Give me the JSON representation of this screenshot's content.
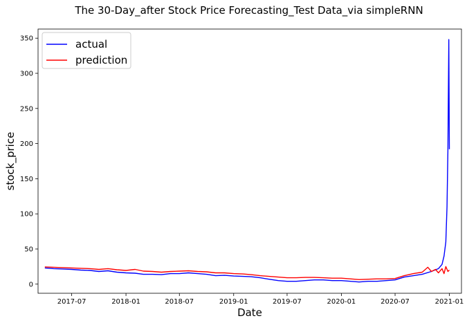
{
  "chart_data": {
    "type": "line",
    "title": "The 30-Day_after Stock Price Forecasting_Test Data_via simpleRNN",
    "xlabel": "Date",
    "ylabel": "stock_price",
    "x_ticks": [
      "2017-07",
      "2018-01",
      "2018-07",
      "2019-01",
      "2019-07",
      "2020-01",
      "2020-07",
      "2021-01"
    ],
    "y_ticks": [
      "0",
      "50",
      "100",
      "150",
      "200",
      "250",
      "300",
      "350"
    ],
    "xlim": [
      "2017-03-09",
      "2021-02-11"
    ],
    "ylim": [
      -13,
      363
    ],
    "grid": false,
    "legend_position": "upper-left",
    "series": [
      {
        "name": "actual",
        "color": "#0000ff",
        "points": [
          [
            "2017-04-01",
            23
          ],
          [
            "2017-05-01",
            22
          ],
          [
            "2017-06-01",
            21.5
          ],
          [
            "2017-07-01",
            21
          ],
          [
            "2017-08-01",
            20
          ],
          [
            "2017-09-01",
            19.5
          ],
          [
            "2017-10-01",
            18
          ],
          [
            "2017-11-01",
            19
          ],
          [
            "2017-12-01",
            17
          ],
          [
            "2018-01-01",
            16
          ],
          [
            "2018-02-01",
            15.5
          ],
          [
            "2018-03-01",
            14
          ],
          [
            "2018-04-01",
            14
          ],
          [
            "2018-05-01",
            13.5
          ],
          [
            "2018-06-01",
            15
          ],
          [
            "2018-07-01",
            15
          ],
          [
            "2018-08-01",
            16
          ],
          [
            "2018-09-01",
            15
          ],
          [
            "2018-10-01",
            14
          ],
          [
            "2018-11-01",
            12
          ],
          [
            "2018-12-01",
            12.5
          ],
          [
            "2019-01-01",
            11.5
          ],
          [
            "2019-02-01",
            11
          ],
          [
            "2019-03-01",
            10.5
          ],
          [
            "2019-04-01",
            9
          ],
          [
            "2019-05-01",
            7
          ],
          [
            "2019-06-01",
            5
          ],
          [
            "2019-07-01",
            4
          ],
          [
            "2019-08-01",
            4
          ],
          [
            "2019-09-01",
            5
          ],
          [
            "2019-10-01",
            6
          ],
          [
            "2019-11-01",
            6
          ],
          [
            "2019-12-01",
            5
          ],
          [
            "2020-01-01",
            5
          ],
          [
            "2020-02-01",
            4
          ],
          [
            "2020-03-01",
            3
          ],
          [
            "2020-04-01",
            4
          ],
          [
            "2020-05-01",
            4
          ],
          [
            "2020-06-01",
            5
          ],
          [
            "2020-07-01",
            6
          ],
          [
            "2020-08-01",
            10
          ],
          [
            "2020-09-01",
            12
          ],
          [
            "2020-10-01",
            14
          ],
          [
            "2020-11-01",
            18
          ],
          [
            "2020-11-25",
            22
          ],
          [
            "2020-12-07",
            28
          ],
          [
            "2020-12-14",
            40
          ],
          [
            "2020-12-20",
            60
          ],
          [
            "2020-12-24",
            110
          ],
          [
            "2020-12-27",
            190
          ],
          [
            "2020-12-30",
            348
          ],
          [
            "2021-01-01",
            192
          ]
        ]
      },
      {
        "name": "prediction",
        "color": "#ff0000",
        "points": [
          [
            "2017-04-01",
            24.5
          ],
          [
            "2017-05-01",
            24
          ],
          [
            "2017-06-01",
            23.5
          ],
          [
            "2017-07-01",
            23
          ],
          [
            "2017-08-01",
            22.5
          ],
          [
            "2017-09-01",
            22
          ],
          [
            "2017-10-01",
            21
          ],
          [
            "2017-11-01",
            22
          ],
          [
            "2017-12-01",
            20.5
          ],
          [
            "2018-01-01",
            19.5
          ],
          [
            "2018-02-01",
            21
          ],
          [
            "2018-03-01",
            18.5
          ],
          [
            "2018-04-01",
            18
          ],
          [
            "2018-05-01",
            17
          ],
          [
            "2018-06-01",
            18
          ],
          [
            "2018-07-01",
            18.5
          ],
          [
            "2018-08-01",
            19
          ],
          [
            "2018-09-01",
            18
          ],
          [
            "2018-10-01",
            17.5
          ],
          [
            "2018-11-01",
            16
          ],
          [
            "2018-12-01",
            16
          ],
          [
            "2019-01-01",
            15
          ],
          [
            "2019-02-01",
            14.5
          ],
          [
            "2019-03-01",
            13.5
          ],
          [
            "2019-04-01",
            12
          ],
          [
            "2019-05-01",
            11
          ],
          [
            "2019-06-01",
            10
          ],
          [
            "2019-07-01",
            9
          ],
          [
            "2019-08-01",
            9
          ],
          [
            "2019-09-01",
            9.5
          ],
          [
            "2019-10-01",
            9.5
          ],
          [
            "2019-11-01",
            9
          ],
          [
            "2019-12-01",
            8.5
          ],
          [
            "2020-01-01",
            8.5
          ],
          [
            "2020-02-01",
            7.5
          ],
          [
            "2020-03-01",
            6.5
          ],
          [
            "2020-04-01",
            7
          ],
          [
            "2020-05-01",
            7.5
          ],
          [
            "2020-06-01",
            7.5
          ],
          [
            "2020-07-01",
            8
          ],
          [
            "2020-08-01",
            12
          ],
          [
            "2020-09-01",
            15
          ],
          [
            "2020-10-01",
            17
          ],
          [
            "2020-10-20",
            24
          ],
          [
            "2020-11-01",
            18
          ],
          [
            "2020-11-15",
            21
          ],
          [
            "2020-11-25",
            16
          ],
          [
            "2020-12-07",
            22
          ],
          [
            "2020-12-14",
            15
          ],
          [
            "2020-12-20",
            25
          ],
          [
            "2020-12-27",
            18
          ],
          [
            "2021-01-01",
            20
          ]
        ]
      }
    ]
  }
}
